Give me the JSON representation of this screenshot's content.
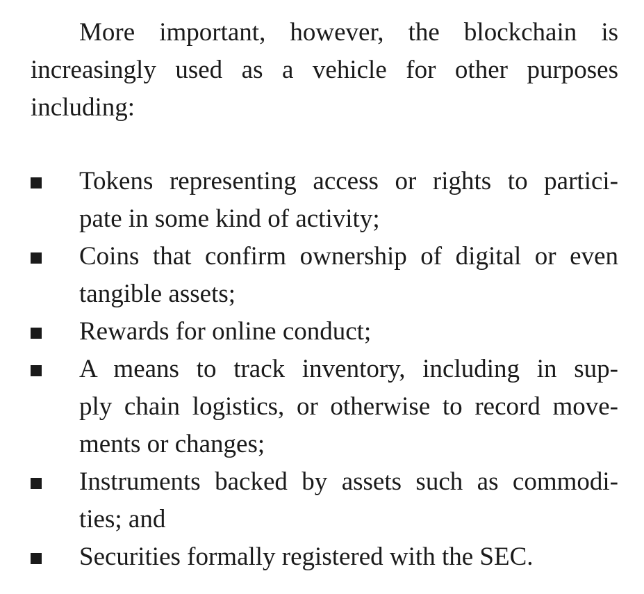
{
  "intro": {
    "lines": [
      "More important, however, the blockchain is",
      "increasingly used as a vehicle for other purposes",
      "including:"
    ]
  },
  "bullets": [
    {
      "lines": [
        "Tokens representing access or rights to partici-",
        "pate in some kind of activity;"
      ]
    },
    {
      "lines": [
        "Coins that confirm ownership of digital or even",
        "tangible assets;"
      ]
    },
    {
      "lines": [
        "Rewards for online conduct;"
      ]
    },
    {
      "lines": [
        "A means to track inventory, including in sup-",
        "ply chain logistics, or otherwise to record move-",
        "ments or changes;"
      ]
    },
    {
      "lines": [
        "Instruments backed by assets such as commodi-",
        "ties; and"
      ]
    },
    {
      "lines": [
        "Securities formally registered with the SEC."
      ]
    }
  ],
  "icons": {
    "bullet_marker": "square-bullet-icon"
  }
}
